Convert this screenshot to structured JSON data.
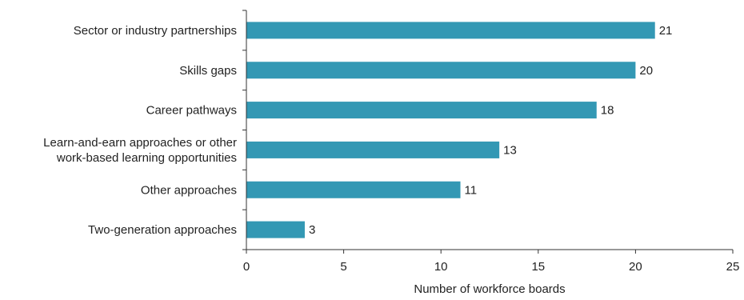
{
  "chart_data": {
    "type": "bar",
    "orientation": "horizontal",
    "categories": [
      "Sector or industry partnerships",
      "Skills gaps",
      "Career pathways",
      "Learn-and-earn approaches or other work-based learning opportunities",
      "Other approaches",
      "Two-generation approaches"
    ],
    "category_lines": [
      [
        "Sector or industry partnerships"
      ],
      [
        "Skills gaps"
      ],
      [
        "Career pathways"
      ],
      [
        "Learn-and-earn approaches or other",
        "work-based learning opportunities"
      ],
      [
        "Other approaches"
      ],
      [
        "Two-generation approaches"
      ]
    ],
    "values": [
      21,
      20,
      18,
      13,
      11,
      3
    ],
    "value_labels": [
      "21",
      "20",
      "18",
      "13",
      "11",
      "3"
    ],
    "xticks": [
      0,
      5,
      10,
      15,
      20,
      25
    ],
    "xtick_labels": [
      "0",
      "5",
      "10",
      "15",
      "20",
      "25"
    ],
    "xlim": [
      0,
      25
    ],
    "title": "",
    "xlabel": "Number of workforce boards",
    "ylabel": "",
    "grid": false,
    "legend": "none",
    "bar_color": "#3398b4"
  }
}
